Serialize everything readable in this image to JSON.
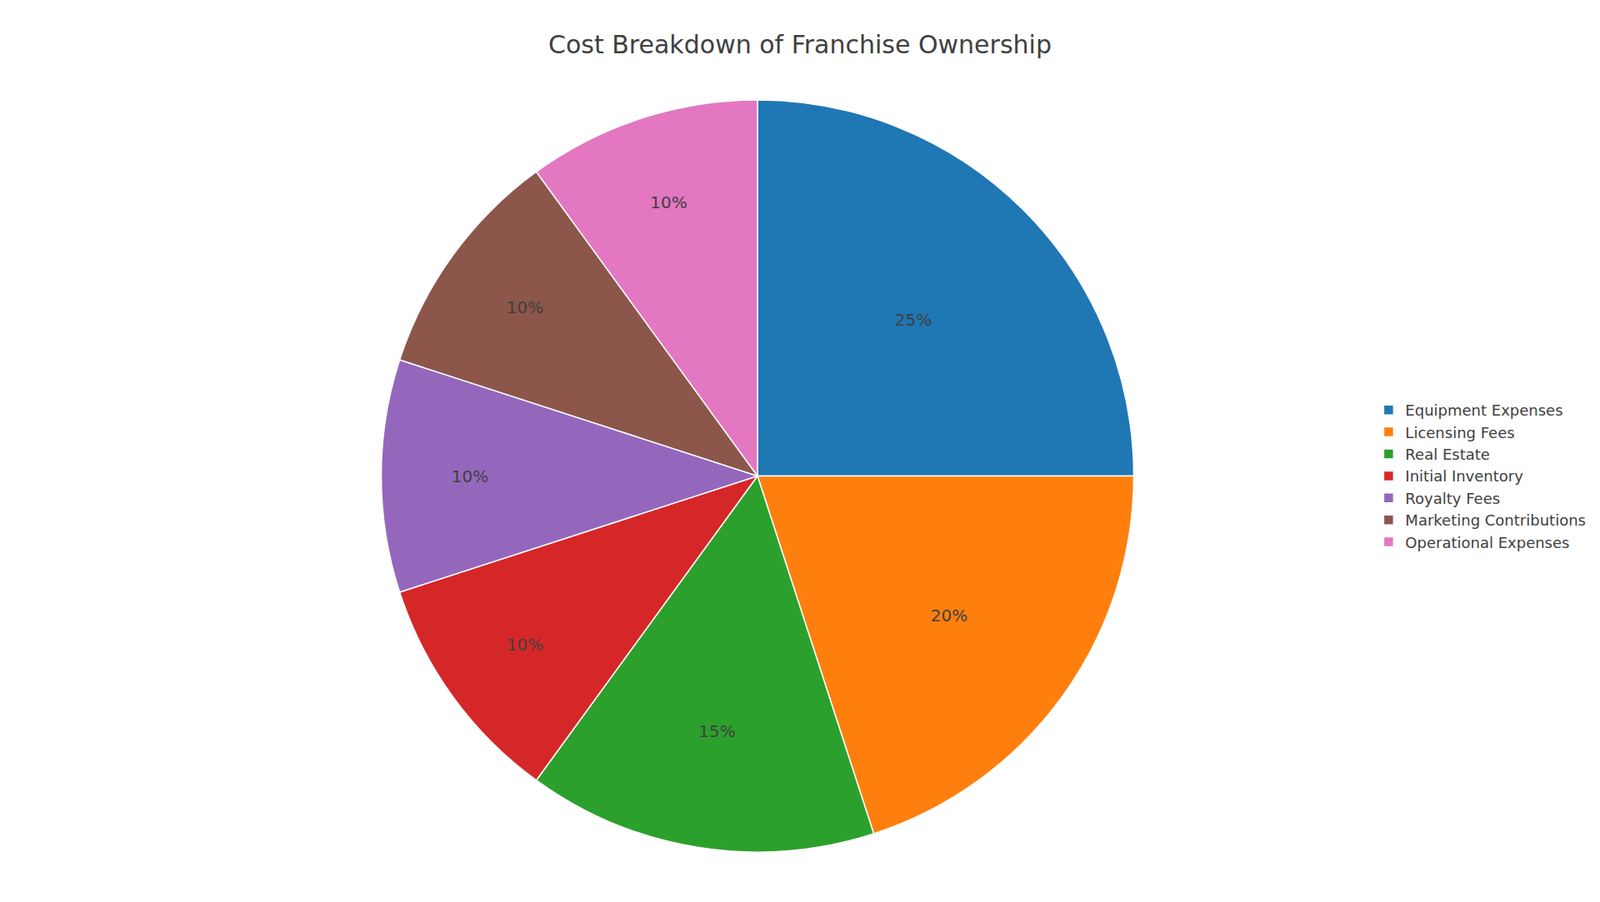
{
  "chart_data": {
    "type": "pie",
    "title": "Cost Breakdown of Franchise Ownership",
    "categories": [
      "Equipment Expenses",
      "Licensing Fees",
      "Real Estate",
      "Initial Inventory",
      "Royalty Fees",
      "Marketing Contributions",
      "Operational Expenses"
    ],
    "values": [
      25,
      20,
      15,
      10,
      10,
      10,
      10
    ],
    "value_labels": [
      "25%",
      "20%",
      "15%",
      "10%",
      "10%",
      "10%",
      "10%"
    ],
    "data_labels": true,
    "legend": "right"
  }
}
